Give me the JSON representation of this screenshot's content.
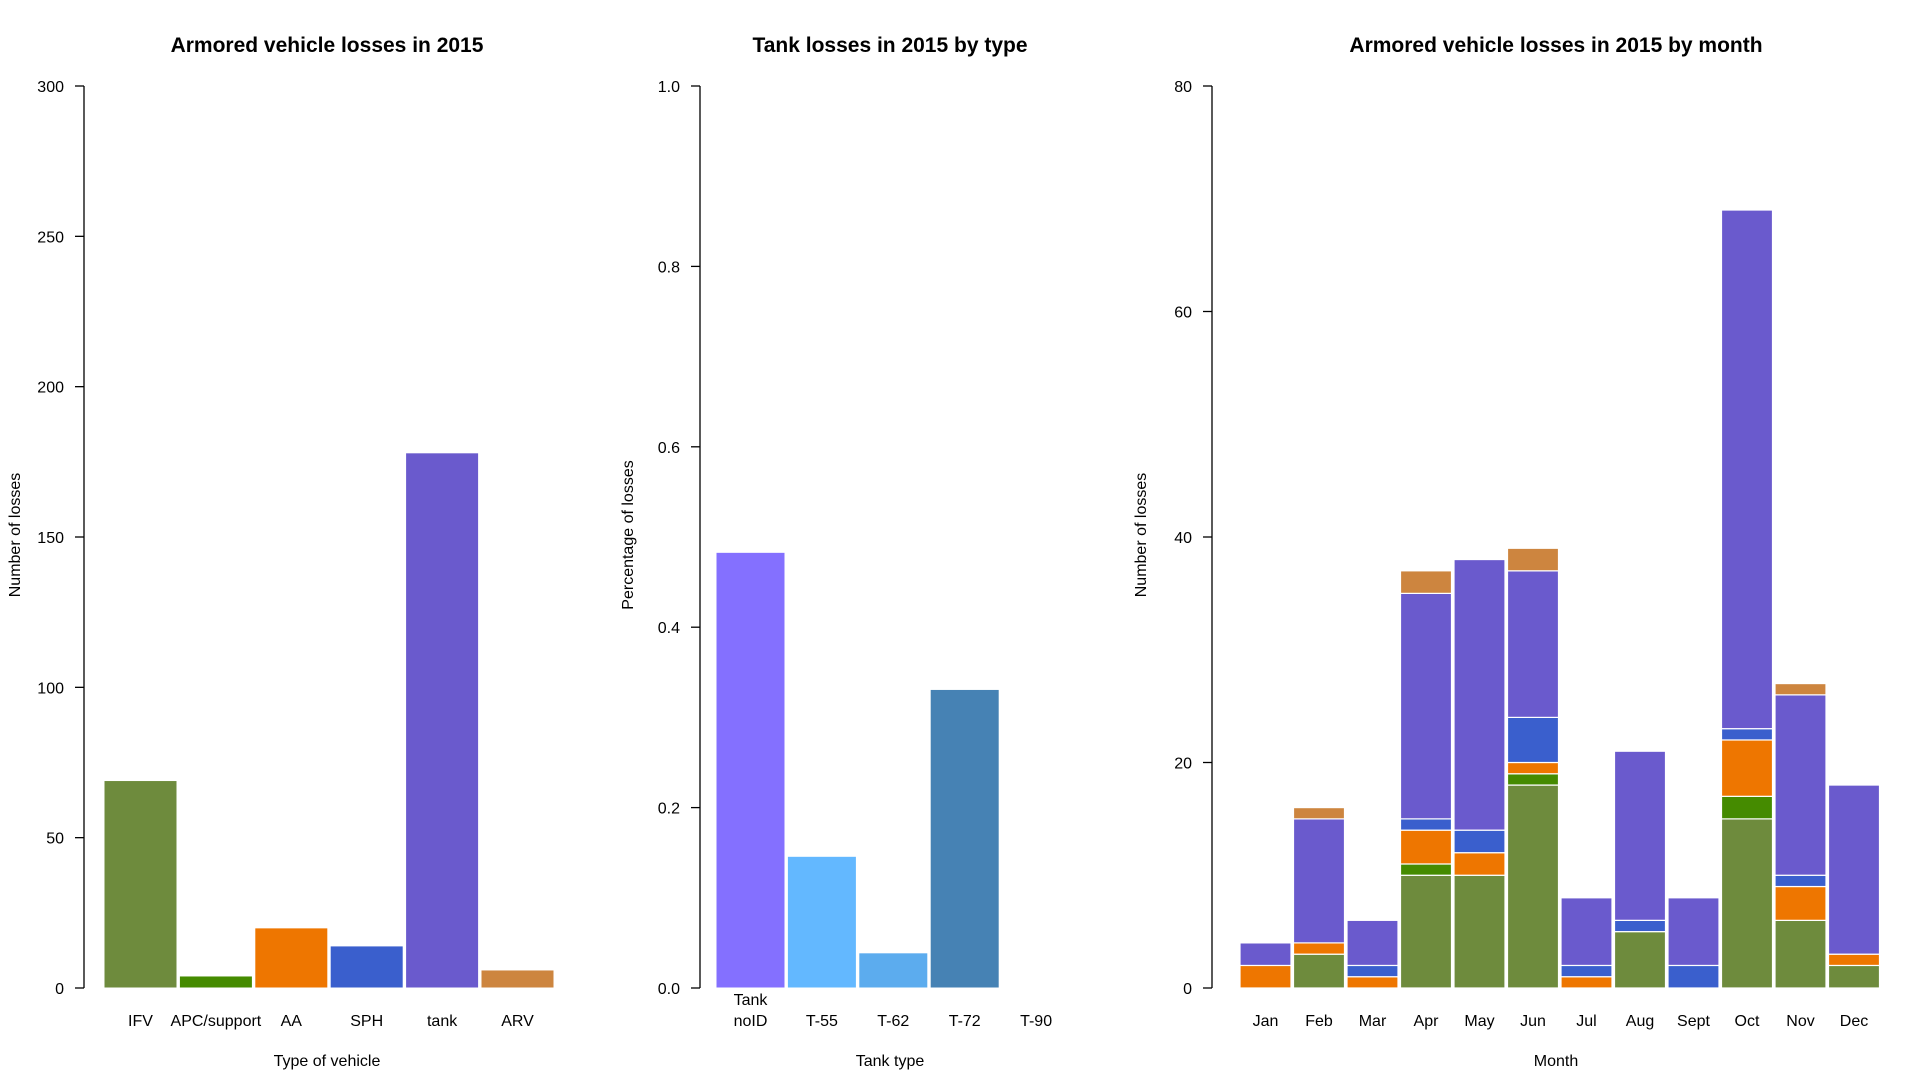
{
  "chart_data": [
    {
      "type": "bar",
      "title": "Armored vehicle losses in 2015",
      "xlabel": "Type of vehicle",
      "ylabel": "Number of losses",
      "ylim": [
        0,
        300
      ],
      "yticks": [
        "0",
        "50",
        "100",
        "150",
        "200",
        "250",
        "300"
      ],
      "categories": [
        "IFV",
        "APC/support",
        "AA",
        "SPH",
        "tank",
        "ARV"
      ],
      "values": [
        69,
        4,
        20,
        14,
        178,
        6
      ],
      "colors": [
        "#6e8b3d",
        "#458b00",
        "#ee7600",
        "#3a5fcd",
        "#6a5acd",
        "#cd853f"
      ]
    },
    {
      "type": "bar",
      "title": "Tank losses in 2015 by type",
      "xlabel": "Tank type",
      "ylabel": "Percentage of losses",
      "ylim": [
        0,
        1
      ],
      "yticks": [
        "0.0",
        "0.2",
        "0.4",
        "0.6",
        "0.8",
        "1.0"
      ],
      "categories": [
        "Tank\nnoID",
        "T-55",
        "T-62",
        "T-72",
        "T-90"
      ],
      "values": [
        0.483,
        0.146,
        0.039,
        0.331,
        0.0
      ],
      "colors": [
        "#8470ff",
        "#63b8ff",
        "#5cacee",
        "#4682b4",
        "#36648b"
      ]
    },
    {
      "type": "bar",
      "stacked": true,
      "title": "Armored vehicle losses in 2015 by month",
      "xlabel": "Month",
      "ylabel": "Number of losses",
      "ylim": [
        0,
        80
      ],
      "yticks": [
        "0",
        "20",
        "40",
        "60",
        "80"
      ],
      "categories": [
        "Jan",
        "Feb",
        "Mar",
        "Apr",
        "May",
        "Jun",
        "Jul",
        "Aug",
        "Sept",
        "Oct",
        "Nov",
        "Dec"
      ],
      "series": [
        {
          "values": [
            0,
            3,
            0,
            10,
            10,
            18,
            0,
            5,
            0,
            15,
            6,
            2
          ],
          "color": "#6e8b3d"
        },
        {
          "values": [
            0,
            0,
            0,
            1,
            0,
            1,
            0,
            0,
            0,
            2,
            0,
            0
          ],
          "color": "#458b00"
        },
        {
          "values": [
            2,
            1,
            1,
            3,
            2,
            1,
            1,
            0,
            0,
            5,
            3,
            1
          ],
          "color": "#ee7600"
        },
        {
          "values": [
            0,
            0,
            1,
            1,
            2,
            4,
            1,
            1,
            2,
            1,
            1,
            0
          ],
          "color": "#3a5fcd"
        },
        {
          "values": [
            2,
            11,
            4,
            20,
            24,
            13,
            6,
            15,
            6,
            46,
            16,
            15
          ],
          "color": "#6a5acd"
        },
        {
          "values": [
            0,
            1,
            0,
            2,
            0,
            2,
            0,
            0,
            0,
            0,
            1,
            0
          ],
          "color": "#cd853f"
        }
      ]
    }
  ]
}
